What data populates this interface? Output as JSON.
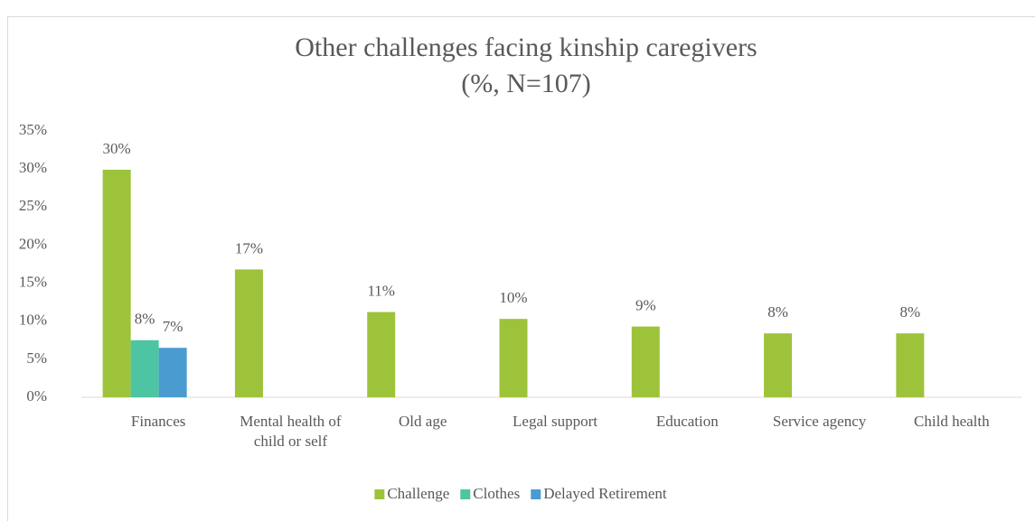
{
  "chart_data": {
    "type": "bar",
    "title": "Other challenges facing kinship caregivers",
    "subtitle": "(%, N=107)",
    "categories": [
      "Finances",
      "Mental health of child or self",
      "Old age",
      "Legal support",
      "Education",
      "Service agency",
      "Child health"
    ],
    "series": [
      {
        "name": "Challenge",
        "color": "#9dc33b",
        "values": [
          29.9,
          16.8,
          11.2,
          10.3,
          9.3,
          8.4,
          8.4
        ],
        "value_labels": [
          "30%",
          "17%",
          "11%",
          "10%",
          "9%",
          "8%",
          "8%"
        ]
      },
      {
        "name": "Clothes",
        "color": "#4dc4a2",
        "values": [
          7.5,
          null,
          null,
          null,
          null,
          null,
          null
        ],
        "value_labels": [
          "8%",
          null,
          null,
          null,
          null,
          null,
          null
        ]
      },
      {
        "name": "Delayed Retirement",
        "color": "#4a9bd0",
        "values": [
          6.5,
          null,
          null,
          null,
          null,
          null,
          null
        ],
        "value_labels": [
          "7%",
          null,
          null,
          null,
          null,
          null,
          null
        ]
      }
    ],
    "ylim": [
      0,
      35
    ],
    "yticks": [
      {
        "value": 0,
        "label": "0%"
      },
      {
        "value": 5,
        "label": "5%"
      },
      {
        "value": 10,
        "label": "10%"
      },
      {
        "value": 15,
        "label": "15%"
      },
      {
        "value": 20,
        "label": "20%"
      },
      {
        "value": 25,
        "label": "25%"
      },
      {
        "value": 30,
        "label": "30%"
      },
      {
        "value": 35,
        "label": "35%"
      }
    ],
    "grid": false,
    "legend": "bottom"
  }
}
